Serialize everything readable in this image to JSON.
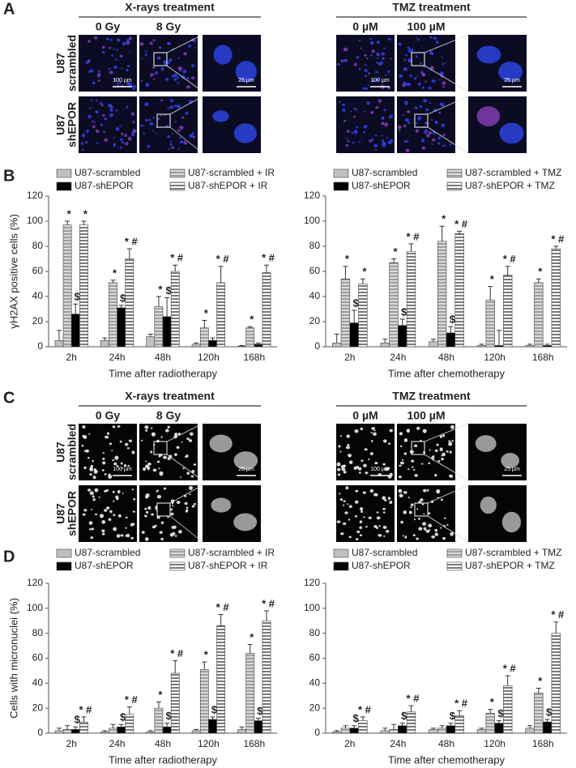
{
  "panel_labels": [
    "A",
    "B",
    "C",
    "D"
  ],
  "image_panels": [
    {
      "groups": [
        {
          "title": "X-rays treatment",
          "columns": [
            "0 Gy",
            "8 Gy"
          ]
        },
        {
          "title": "TMZ treatment",
          "columns": [
            "0 µM",
            "100 µM"
          ]
        }
      ],
      "rows": [
        [
          "U87",
          "scrambled"
        ],
        [
          "U87",
          "shEPOR"
        ]
      ],
      "scale_bars": [
        "100 µm",
        "25 µm"
      ]
    },
    {
      "groups": [
        {
          "title": "X-rays treatment",
          "columns": [
            "0 Gy",
            "8 Gy"
          ]
        },
        {
          "title": "TMZ treatment",
          "columns": [
            "0 µM",
            "100 µM"
          ]
        }
      ],
      "rows": [
        [
          "U87",
          "scrambled"
        ],
        [
          "U87",
          "shEPOR"
        ]
      ],
      "scale_bars": [
        "100 µm",
        "25 µm"
      ]
    }
  ],
  "chart_data": [
    {
      "type": "bar",
      "ylabel": "γH2AX positive cells (%)",
      "xlabel": "Time after radiotherapy",
      "categories": [
        "2h",
        "24h",
        "48h",
        "120h",
        "168h"
      ],
      "ylim": [
        0,
        120
      ],
      "yticks": [
        0,
        20,
        40,
        60,
        80,
        100,
        120
      ],
      "series": [
        {
          "name": "U87-scrambled",
          "color": "#bfbfbf",
          "values": [
            5,
            5,
            8,
            2,
            0.5
          ],
          "errors": [
            8,
            2,
            2,
            1,
            0.5
          ]
        },
        {
          "name": "U87-scrambled + IR",
          "color": "#d9d9d9",
          "hatch": "horizontal",
          "values": [
            97,
            51,
            32,
            15,
            15
          ],
          "errors": [
            3,
            2,
            8,
            6,
            1
          ],
          "annotations": [
            "*",
            "*",
            "*",
            "*",
            "*"
          ]
        },
        {
          "name": "U87-shEPOR",
          "color": "#000000",
          "values": [
            26,
            31,
            24,
            5,
            2
          ],
          "errors": [
            8,
            2,
            15,
            2,
            1
          ],
          "annotations": [
            "$",
            "$",
            "$",
            null,
            null
          ]
        },
        {
          "name": "U87-shEPOR + IR",
          "color": "#ffffff",
          "hatch": "horizontal",
          "values": [
            97,
            70,
            60,
            51,
            59
          ],
          "errors": [
            3,
            8,
            5,
            13,
            6
          ],
          "annotations": [
            "*",
            "* #",
            "* #",
            "* #",
            "* #"
          ]
        }
      ]
    },
    {
      "type": "bar",
      "xlabel": "Time after chemotherapy",
      "categories": [
        "2h",
        "24h",
        "48h",
        "120h",
        "168h"
      ],
      "ylim": [
        0,
        120
      ],
      "yticks": [
        0,
        20,
        40,
        60,
        80,
        100,
        120
      ],
      "series": [
        {
          "name": "U87-scrambled",
          "color": "#bfbfbf",
          "values": [
            3,
            3,
            4,
            1,
            1
          ],
          "errors": [
            7,
            3,
            2,
            1,
            1
          ]
        },
        {
          "name": "U87-scrambled + TMZ",
          "color": "#d9d9d9",
          "hatch": "horizontal",
          "values": [
            54,
            67,
            84,
            37,
            51
          ],
          "errors": [
            10,
            3,
            12,
            11,
            3
          ],
          "annotations": [
            "*",
            "*",
            "*",
            "*",
            "*"
          ]
        },
        {
          "name": "U87-shEPOR",
          "color": "#000000",
          "values": [
            19,
            17,
            11,
            1,
            1
          ],
          "errors": [
            10,
            5,
            5,
            12,
            1
          ],
          "annotations": [
            "$",
            "$",
            "$",
            null,
            null
          ]
        },
        {
          "name": "U87-shEPOR + TMZ",
          "color": "#ffffff",
          "hatch": "horizontal",
          "values": [
            50,
            76,
            90,
            57,
            78
          ],
          "errors": [
            4,
            6,
            2,
            7,
            2
          ],
          "annotations": [
            "*",
            "* #",
            "* #",
            "* #",
            "* #"
          ]
        }
      ]
    },
    {
      "type": "bar",
      "ylabel": "Cells with micronuclei (%)",
      "xlabel": "Time after radiotherapy",
      "categories": [
        "2h",
        "24h",
        "48h",
        "120h",
        "168h"
      ],
      "ylim": [
        0,
        120
      ],
      "yticks": [
        0,
        20,
        40,
        60,
        80,
        100,
        120
      ],
      "series": [
        {
          "name": "U87-scrambled",
          "color": "#bfbfbf",
          "values": [
            2,
            1,
            1,
            2,
            3
          ],
          "errors": [
            2,
            1,
            1,
            1,
            2
          ]
        },
        {
          "name": "U87-scrambled + IR",
          "color": "#d9d9d9",
          "hatch": "horizontal",
          "values": [
            3,
            4,
            20,
            51,
            64
          ],
          "errors": [
            3,
            3,
            5,
            6,
            7
          ],
          "annotations": [
            null,
            null,
            "*",
            "*",
            "*"
          ]
        },
        {
          "name": "U87-shEPOR",
          "color": "#000000",
          "values": [
            3,
            5,
            5,
            11,
            10
          ],
          "errors": [
            2,
            2,
            3,
            2,
            2
          ],
          "annotations": [
            "$",
            "$",
            "$",
            "$",
            "$"
          ]
        },
        {
          "name": "U87-shEPOR + IR",
          "color": "#ffffff",
          "hatch": "horizontal",
          "values": [
            9,
            15,
            48,
            86,
            90
          ],
          "errors": [
            4,
            6,
            10,
            9,
            8
          ],
          "annotations": [
            "* #",
            "* #",
            "* #",
            "* #",
            "* #"
          ]
        }
      ]
    },
    {
      "type": "bar",
      "xlabel": "Time after chemotherapy",
      "categories": [
        "2h",
        "24h",
        "48h",
        "120h",
        "168h"
      ],
      "ylim": [
        0,
        120
      ],
      "yticks": [
        0,
        20,
        40,
        60,
        80,
        100,
        120
      ],
      "series": [
        {
          "name": "U87-scrambled",
          "color": "#bfbfbf",
          "values": [
            1,
            2,
            3,
            3,
            4
          ],
          "errors": [
            1,
            2,
            1,
            1,
            2
          ]
        },
        {
          "name": "U87-scrambled + TMZ",
          "color": "#d9d9d9",
          "hatch": "horizontal",
          "values": [
            4,
            3,
            4,
            16,
            32
          ],
          "errors": [
            2,
            4,
            2,
            3,
            4
          ],
          "annotations": [
            null,
            null,
            null,
            "*",
            "*"
          ]
        },
        {
          "name": "U87-shEPOR",
          "color": "#000000",
          "values": [
            4,
            6,
            6,
            8,
            9
          ],
          "errors": [
            2,
            2,
            2,
            2,
            2
          ],
          "annotations": [
            "$",
            "$",
            "$",
            "$",
            "$"
          ]
        },
        {
          "name": "U87-shEPOR + TMZ",
          "color": "#ffffff",
          "hatch": "horizontal",
          "values": [
            10,
            17,
            14,
            38,
            80
          ],
          "errors": [
            3,
            5,
            4,
            8,
            9
          ],
          "annotations": [
            "* #",
            "* #",
            "* #",
            "* #",
            "* #"
          ]
        }
      ]
    }
  ]
}
